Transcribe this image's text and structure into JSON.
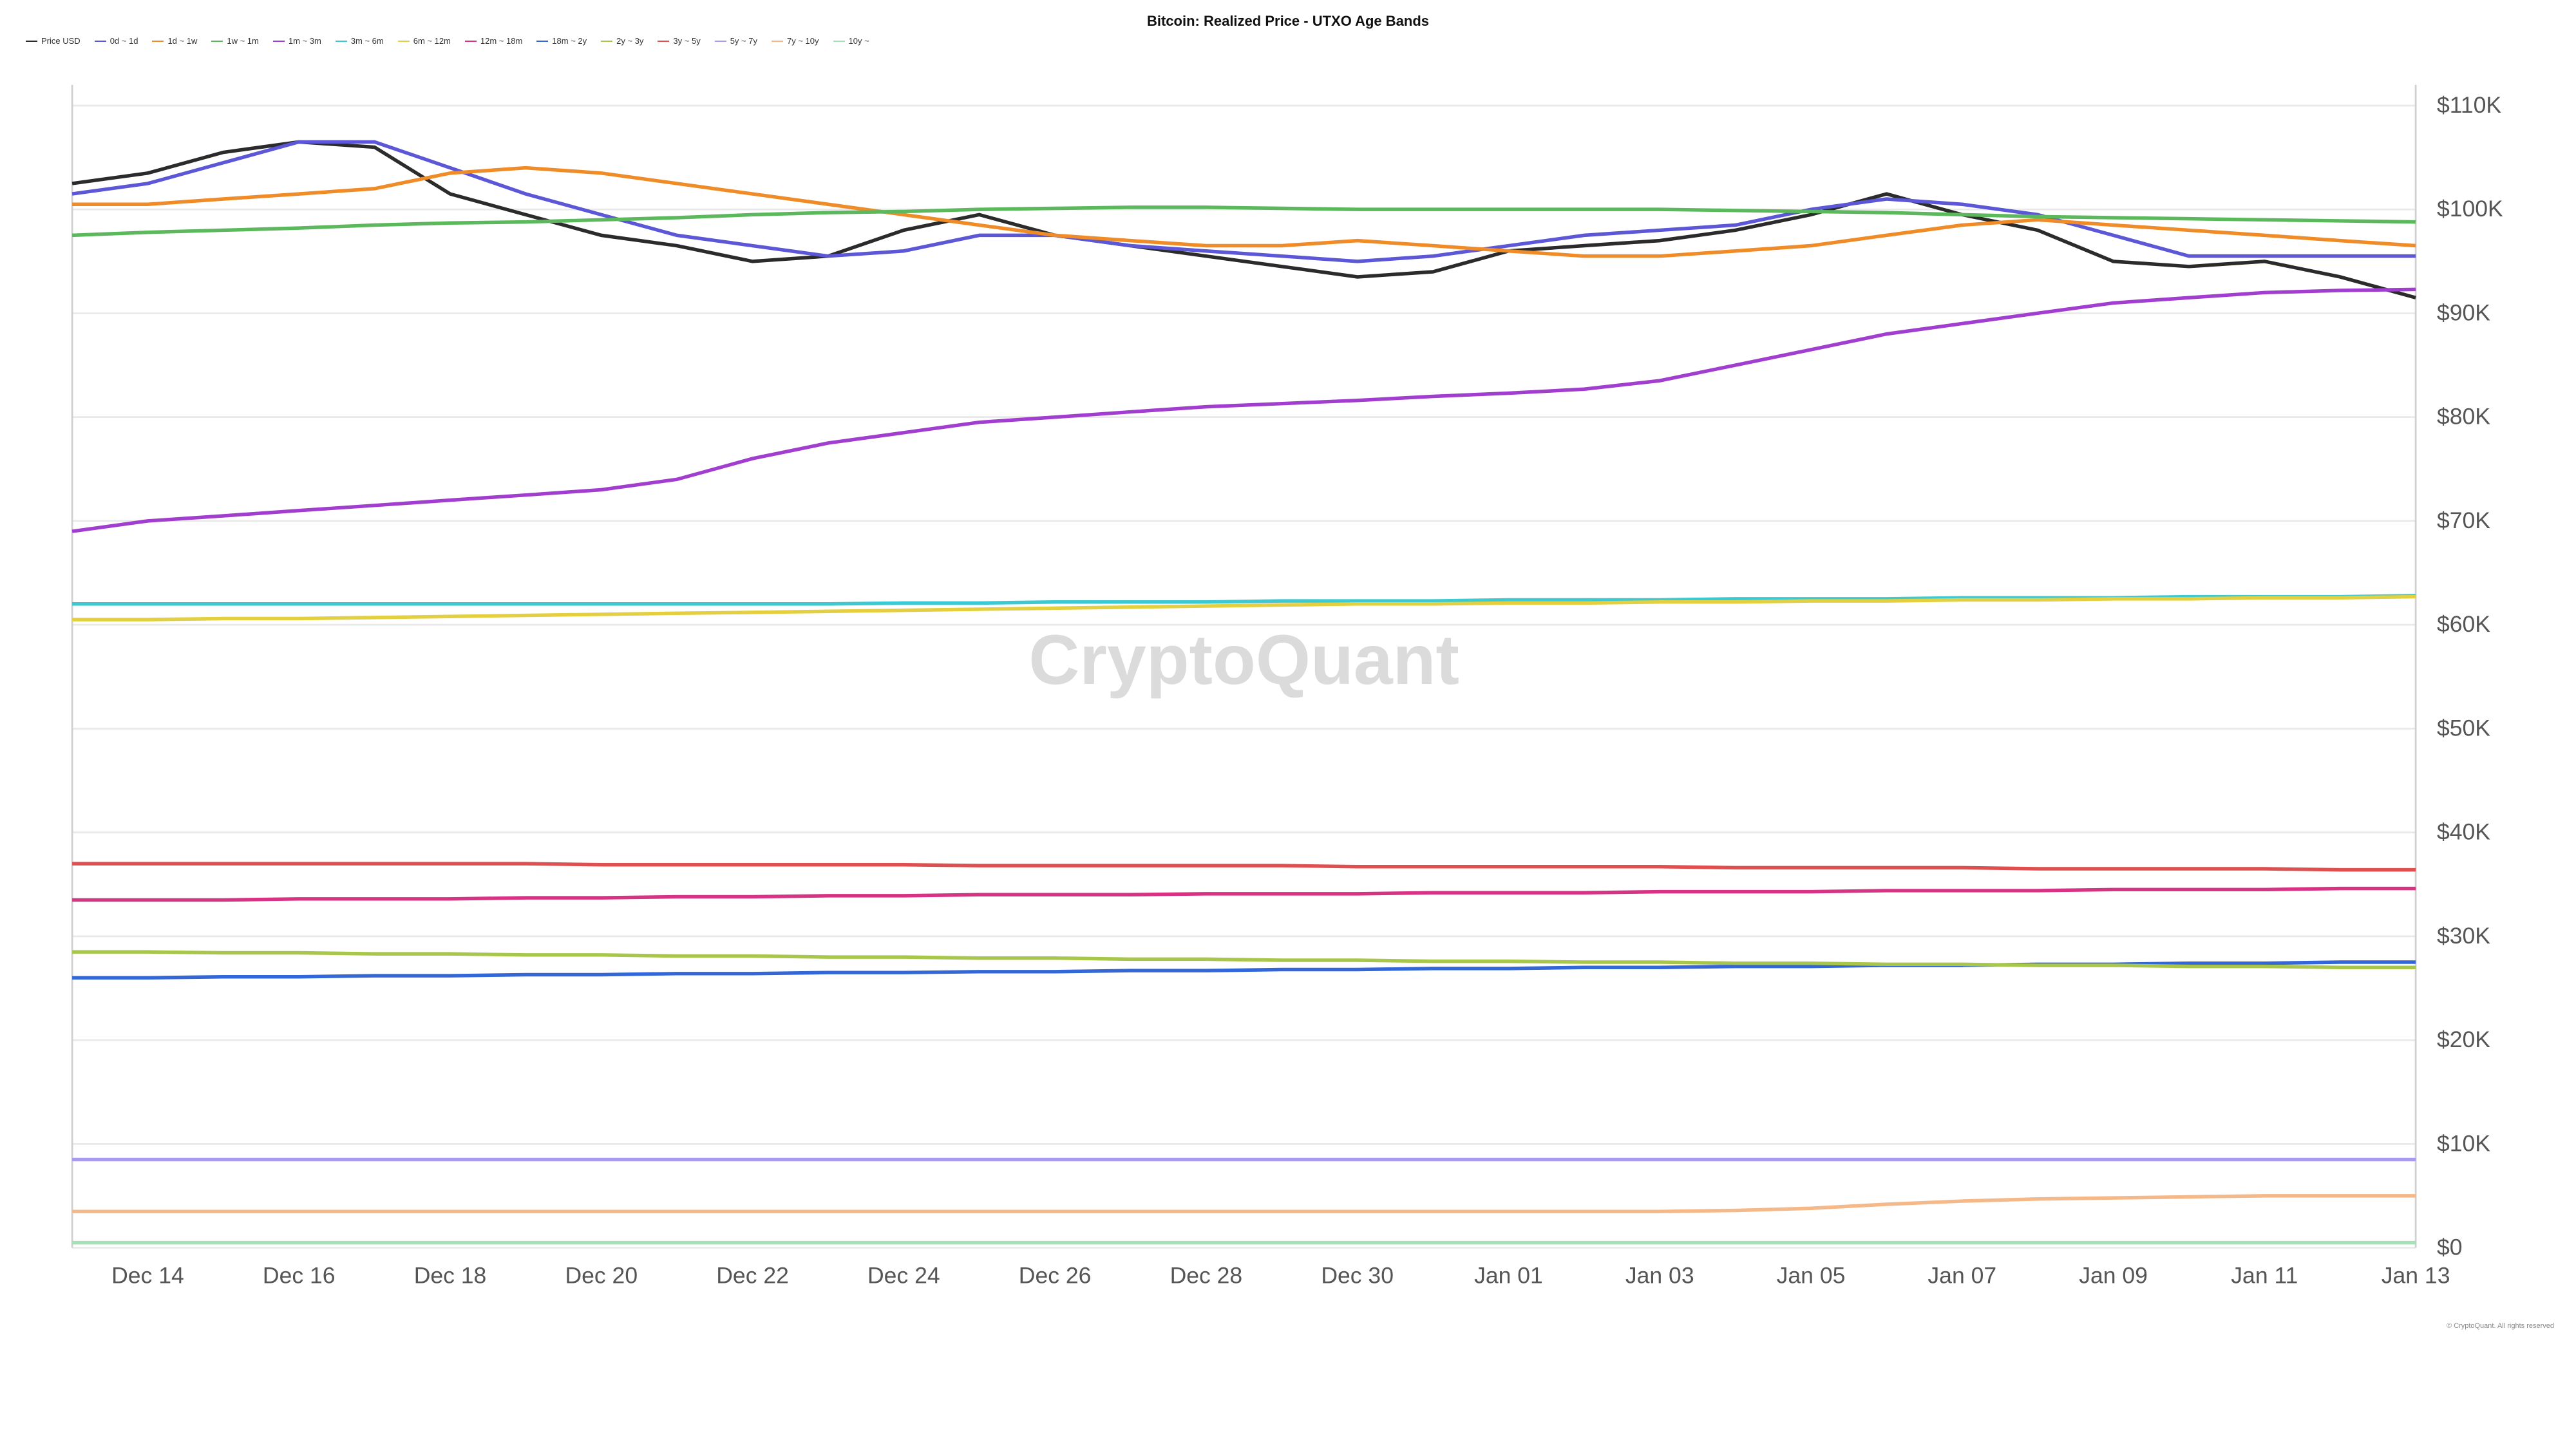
{
  "chart": {
    "type": "line",
    "title": "Bitcoin: Realized Price - UTXO Age Bands",
    "watermark": "CryptoQuant",
    "copyright": "© CryptoQuant. All rights reserved",
    "background_color": "#ffffff",
    "grid_color": "#e9e9e9",
    "border_color": "#cfcfcf",
    "title_fontsize": 22,
    "label_fontsize": 13,
    "line_width": 2,
    "x": {
      "labels": [
        "Dec 14",
        "Dec 16",
        "Dec 18",
        "Dec 20",
        "Dec 22",
        "Dec 24",
        "Dec 26",
        "Dec 28",
        "Dec 30",
        "Jan 01",
        "Jan 03",
        "Jan 05",
        "Jan 07",
        "Jan 09",
        "Jan 11",
        "Jan 13"
      ],
      "indices": [
        1,
        3,
        5,
        7,
        9,
        11,
        13,
        15,
        17,
        19,
        21,
        23,
        25,
        27,
        29,
        31
      ]
    },
    "y": {
      "min": 0,
      "max": 112000,
      "ticks": [
        0,
        10000,
        20000,
        30000,
        40000,
        50000,
        60000,
        70000,
        80000,
        90000,
        100000,
        110000
      ],
      "tick_labels": [
        "$0",
        "$10K",
        "$20K",
        "$30K",
        "$40K",
        "$50K",
        "$60K",
        "$70K",
        "$80K",
        "$90K",
        "$100K",
        "$110K"
      ]
    },
    "series": [
      {
        "name": "Price USD",
        "color": "#2b2b2b",
        "values": [
          102500,
          103500,
          105500,
          106500,
          106000,
          101500,
          99500,
          97500,
          96500,
          95000,
          95500,
          98000,
          99500,
          97500,
          96500,
          95500,
          94500,
          93500,
          94000,
          96000,
          96500,
          97000,
          98000,
          99500,
          101500,
          99500,
          98000,
          95000,
          94500,
          95000,
          93500,
          91500
        ]
      },
      {
        "name": "0d ~ 1d",
        "color": "#5b57d6",
        "values": [
          101500,
          102500,
          104500,
          106500,
          106500,
          104000,
          101500,
          99500,
          97500,
          96500,
          95500,
          96000,
          97500,
          97500,
          96500,
          96000,
          95500,
          95000,
          95500,
          96500,
          97500,
          98000,
          98500,
          100000,
          101000,
          100500,
          99500,
          97500,
          95500,
          95500,
          95500,
          95500
        ]
      },
      {
        "name": "1d ~ 1w",
        "color": "#f08c28",
        "values": [
          100500,
          100500,
          101000,
          101500,
          102000,
          103500,
          104000,
          103500,
          102500,
          101500,
          100500,
          99500,
          98500,
          97500,
          97000,
          96500,
          96500,
          97000,
          96500,
          96000,
          95500,
          95500,
          96000,
          96500,
          97500,
          98500,
          99000,
          98500,
          98000,
          97500,
          97000,
          96500
        ]
      },
      {
        "name": "1w ~ 1m",
        "color": "#5cb85c",
        "values": [
          97500,
          97800,
          98000,
          98200,
          98500,
          98700,
          98800,
          99000,
          99200,
          99500,
          99700,
          99800,
          100000,
          100100,
          100200,
          100200,
          100100,
          100000,
          100000,
          100000,
          100000,
          100000,
          99900,
          99800,
          99700,
          99500,
          99300,
          99200,
          99100,
          99000,
          98900,
          98800
        ]
      },
      {
        "name": "1m ~ 3m",
        "color": "#a23ecf",
        "values": [
          69000,
          70000,
          70500,
          71000,
          71500,
          72000,
          72500,
          73000,
          74000,
          76000,
          77500,
          78500,
          79500,
          80000,
          80500,
          81000,
          81300,
          81600,
          82000,
          82300,
          82700,
          83500,
          85000,
          86500,
          88000,
          89000,
          90000,
          91000,
          91500,
          92000,
          92200,
          92300
        ]
      },
      {
        "name": "3m ~ 6m",
        "color": "#3dc9d1",
        "values": [
          62000,
          62000,
          62000,
          62000,
          62000,
          62000,
          62000,
          62000,
          62000,
          62000,
          62000,
          62100,
          62100,
          62200,
          62200,
          62200,
          62300,
          62300,
          62300,
          62400,
          62400,
          62400,
          62500,
          62500,
          62500,
          62600,
          62600,
          62600,
          62700,
          62700,
          62700,
          62800
        ]
      },
      {
        "name": "6m ~ 12m",
        "color": "#e3cf3f",
        "values": [
          60500,
          60500,
          60600,
          60600,
          60700,
          60800,
          60900,
          61000,
          61100,
          61200,
          61300,
          61400,
          61500,
          61600,
          61700,
          61800,
          61900,
          62000,
          62000,
          62100,
          62100,
          62200,
          62200,
          62300,
          62300,
          62400,
          62400,
          62500,
          62500,
          62600,
          62600,
          62700
        ]
      },
      {
        "name": "12m ~ 18m",
        "color": "#d63384",
        "values": [
          33500,
          33500,
          33500,
          33600,
          33600,
          33600,
          33700,
          33700,
          33800,
          33800,
          33900,
          33900,
          34000,
          34000,
          34000,
          34100,
          34100,
          34100,
          34200,
          34200,
          34200,
          34300,
          34300,
          34300,
          34400,
          34400,
          34400,
          34500,
          34500,
          34500,
          34600,
          34600
        ]
      },
      {
        "name": "18m ~ 2y",
        "color": "#3366d6",
        "values": [
          26000,
          26000,
          26100,
          26100,
          26200,
          26200,
          26300,
          26300,
          26400,
          26400,
          26500,
          26500,
          26600,
          26600,
          26700,
          26700,
          26800,
          26800,
          26900,
          26900,
          27000,
          27000,
          27100,
          27100,
          27200,
          27200,
          27300,
          27300,
          27400,
          27400,
          27500,
          27500
        ]
      },
      {
        "name": "2y ~ 3y",
        "color": "#a8c74a",
        "values": [
          28500,
          28500,
          28400,
          28400,
          28300,
          28300,
          28200,
          28200,
          28100,
          28100,
          28000,
          28000,
          27900,
          27900,
          27800,
          27800,
          27700,
          27700,
          27600,
          27600,
          27500,
          27500,
          27400,
          27400,
          27300,
          27300,
          27200,
          27200,
          27100,
          27100,
          27000,
          27000
        ]
      },
      {
        "name": "3y ~ 5y",
        "color": "#e04f4f",
        "values": [
          37000,
          37000,
          37000,
          37000,
          37000,
          37000,
          37000,
          36900,
          36900,
          36900,
          36900,
          36900,
          36800,
          36800,
          36800,
          36800,
          36800,
          36700,
          36700,
          36700,
          36700,
          36700,
          36600,
          36600,
          36600,
          36600,
          36500,
          36500,
          36500,
          36500,
          36400,
          36400
        ]
      },
      {
        "name": "5y ~ 7y",
        "color": "#a99cf0",
        "values": [
          8500,
          8500,
          8500,
          8500,
          8500,
          8500,
          8500,
          8500,
          8500,
          8500,
          8500,
          8500,
          8500,
          8500,
          8500,
          8500,
          8500,
          8500,
          8500,
          8500,
          8500,
          8500,
          8500,
          8500,
          8500,
          8500,
          8500,
          8500,
          8500,
          8500,
          8500,
          8500
        ]
      },
      {
        "name": "7y ~ 10y",
        "color": "#f5b888",
        "values": [
          3500,
          3500,
          3500,
          3500,
          3500,
          3500,
          3500,
          3500,
          3500,
          3500,
          3500,
          3500,
          3500,
          3500,
          3500,
          3500,
          3500,
          3500,
          3500,
          3500,
          3500,
          3500,
          3600,
          3800,
          4200,
          4500,
          4700,
          4800,
          4900,
          5000,
          5000,
          5000
        ]
      },
      {
        "name": "10y ~",
        "color": "#a5e0b8",
        "values": [
          500,
          500,
          500,
          500,
          500,
          500,
          500,
          500,
          500,
          500,
          500,
          500,
          500,
          500,
          500,
          500,
          500,
          500,
          500,
          500,
          500,
          500,
          500,
          500,
          500,
          500,
          500,
          500,
          500,
          500,
          500,
          500
        ]
      }
    ]
  }
}
